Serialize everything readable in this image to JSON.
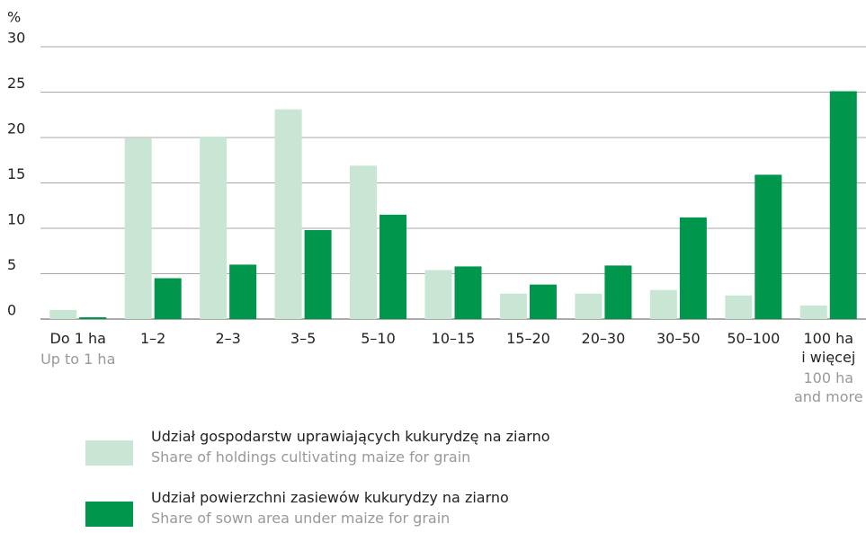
{
  "chart_data": {
    "type": "bar",
    "y_unit": "%",
    "categories": [
      "Do 1 ha",
      "1–2",
      "2–3",
      "3–5",
      "5–10",
      "10–15",
      "15–20",
      "20–30",
      "30–50",
      "50–100",
      "100 ha\ni więcej"
    ],
    "categories_en": [
      "Up to 1 ha",
      null,
      null,
      null,
      null,
      null,
      null,
      null,
      null,
      null,
      "100 ha\nand more"
    ],
    "series": [
      {
        "name": "Udział gospodarstw uprawiających kukurydzę na ziarno",
        "name_en": "Share  of holdings cultivating maize for grain",
        "color": "#c8e6d3",
        "values": [
          1.0,
          19.9,
          20.1,
          23.1,
          16.9,
          5.4,
          2.8,
          2.8,
          3.2,
          2.6,
          1.5
        ]
      },
      {
        "name": "Udział powierzchni zasiewów kukurydzy na ziarno",
        "name_en": "Share of sown area under maize for grain",
        "color": "#00964b",
        "values": [
          0.2,
          4.5,
          6.0,
          9.8,
          11.5,
          5.8,
          3.8,
          5.9,
          11.2,
          15.9,
          25.1
        ]
      }
    ],
    "ylim": [
      0,
      30
    ],
    "yticks": [
      0,
      5,
      10,
      15,
      20,
      25,
      30
    ],
    "grid": true
  }
}
